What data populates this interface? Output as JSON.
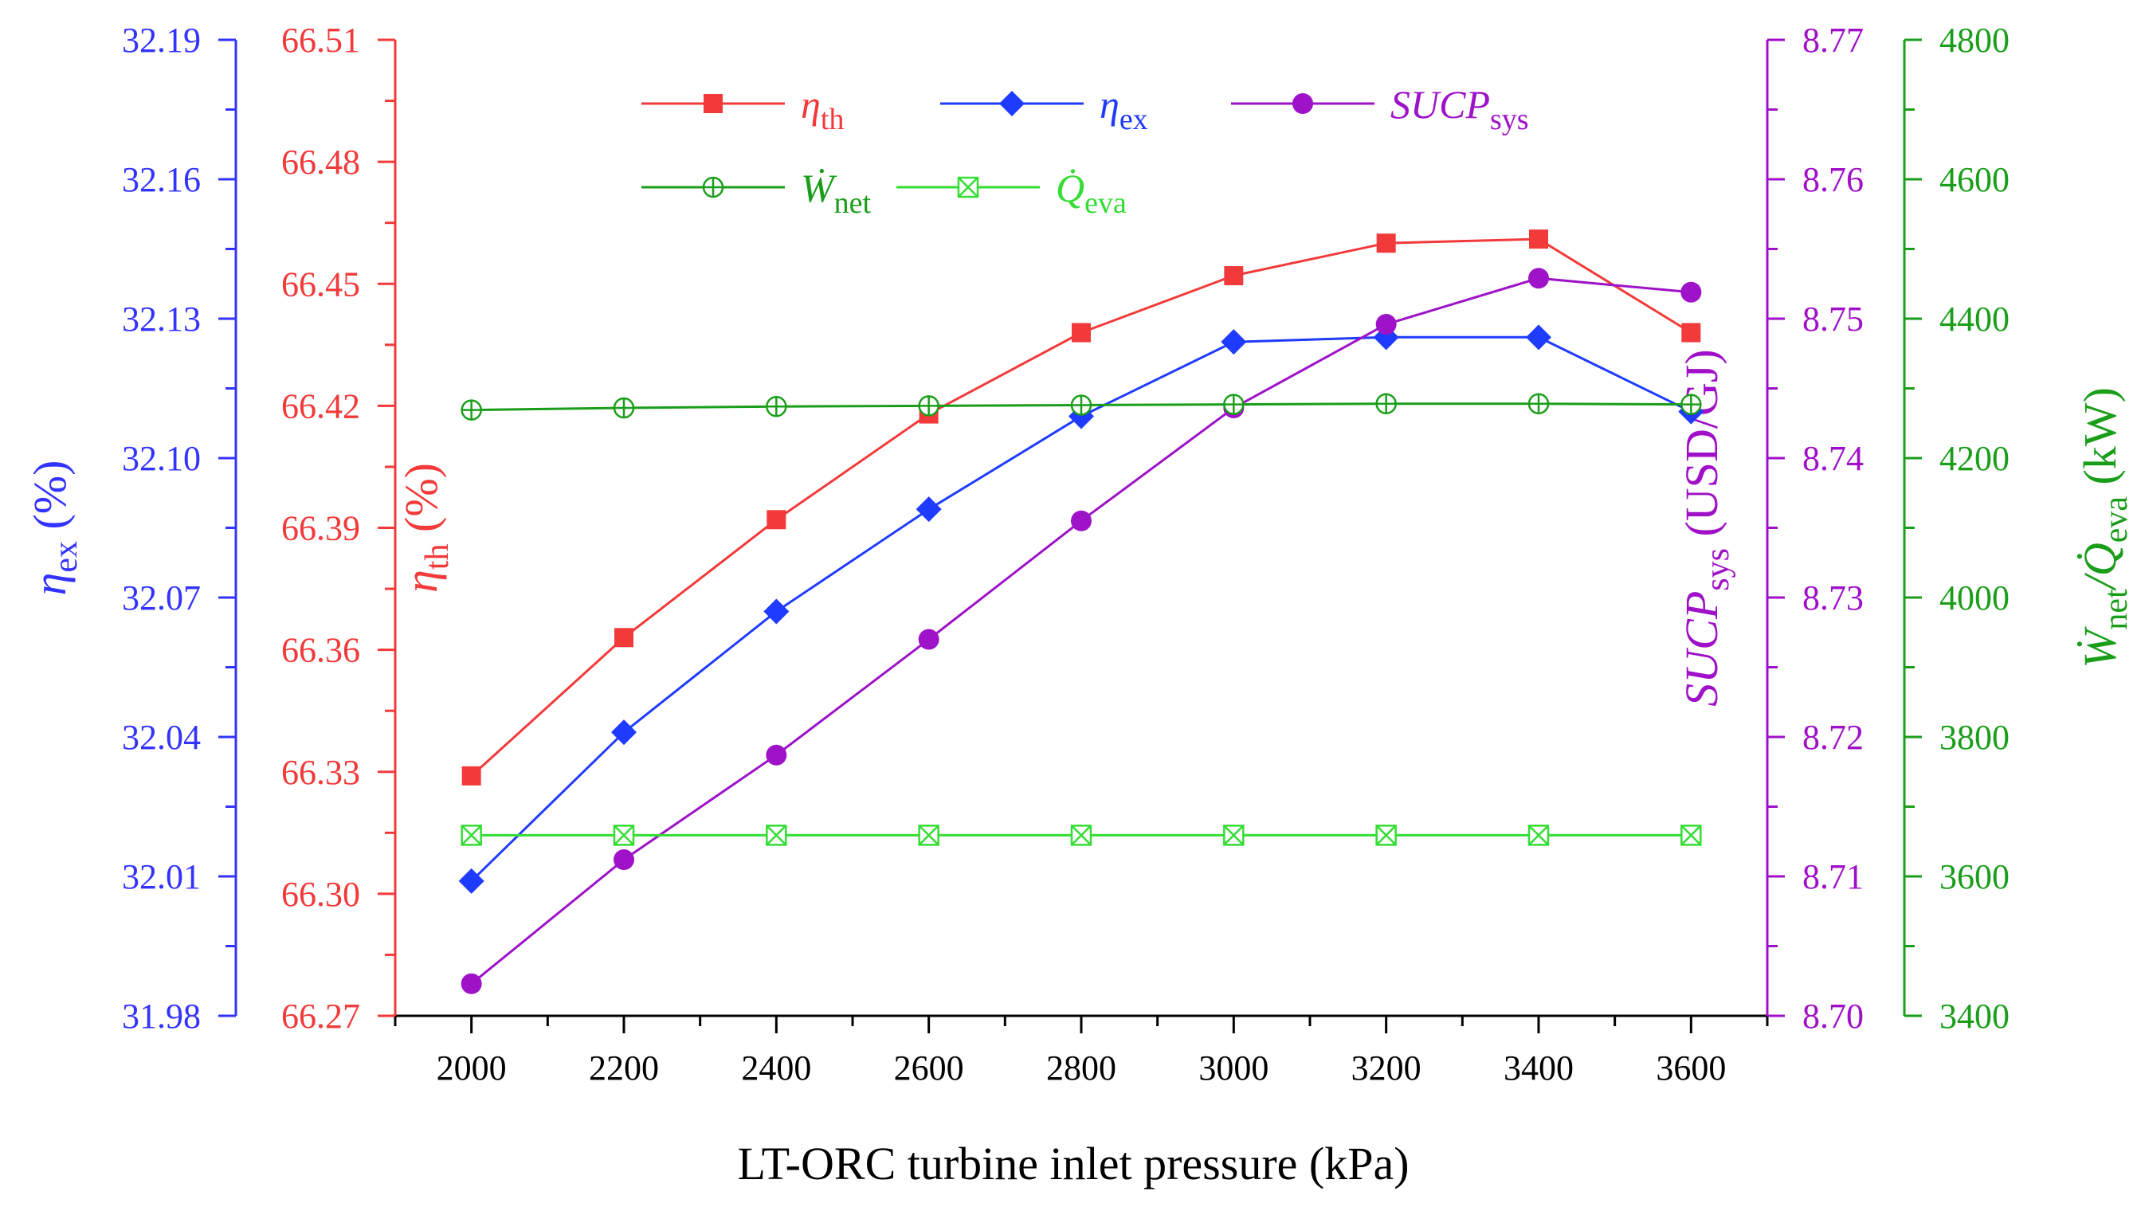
{
  "chart_data": {
    "type": "line",
    "x": [
      2000,
      2200,
      2400,
      2600,
      2800,
      3000,
      3200,
      3400,
      3600
    ],
    "xlabel": "LT-ORC turbine inlet pressure (kPa)",
    "xlim": [
      1900,
      3700
    ],
    "xticks": [
      "2000",
      "2200",
      "2400",
      "2600",
      "2800",
      "3000",
      "3200",
      "3400",
      "3600"
    ],
    "axes": [
      {
        "id": "eta_ex",
        "side": "left",
        "label_main": "η",
        "label_sub": "ex",
        "label_unit": " (%)",
        "ylim": [
          31.98,
          32.19
        ],
        "ticks": [
          "31.98",
          "32.01",
          "32.04",
          "32.07",
          "32.10",
          "32.13",
          "32.16",
          "32.19"
        ],
        "color": "#3333ff"
      },
      {
        "id": "eta_th",
        "side": "left",
        "label_main": "η",
        "label_sub": "th",
        "label_unit": " (%)",
        "ylim": [
          66.27,
          66.51
        ],
        "ticks": [
          "66.27",
          "66.30",
          "66.33",
          "66.36",
          "66.39",
          "66.42",
          "66.45",
          "66.48",
          "66.51"
        ],
        "color": "#f23a3a"
      },
      {
        "id": "sucp",
        "side": "right",
        "label_main": "SUCP",
        "label_sub": "sys",
        "label_unit": " (USD/GJ)",
        "ylim": [
          8.7,
          8.77
        ],
        "ticks": [
          "8.70",
          "8.71",
          "8.72",
          "8.73",
          "8.74",
          "8.75",
          "8.76",
          "8.77"
        ],
        "color": "#a010c8"
      },
      {
        "id": "power",
        "side": "right",
        "label_main": "Ẇ",
        "label_sub": "net",
        "label_mid": "/Q̇",
        "label_sub2": "eva",
        "label_unit": " (kW)",
        "ylim": [
          3400,
          4800
        ],
        "ticks": [
          "3400",
          "3600",
          "3800",
          "4000",
          "4200",
          "4400",
          "4600",
          "4800"
        ],
        "color": "#1a9e1a"
      }
    ],
    "series": [
      {
        "name_main": "η",
        "name_sub": "th",
        "axis": "eta_th",
        "marker": "square",
        "color": "#f23a3a",
        "values": [
          66.329,
          66.363,
          66.392,
          66.418,
          66.438,
          66.452,
          66.46,
          66.461,
          66.438
        ]
      },
      {
        "name_main": "η",
        "name_sub": "ex",
        "axis": "eta_ex",
        "marker": "diamond",
        "color": "#1f3bff",
        "values": [
          32.009,
          32.041,
          32.067,
          32.089,
          32.109,
          32.125,
          32.126,
          32.126,
          32.11
        ]
      },
      {
        "name_main": "SUCP",
        "name_sub": "sys",
        "axis": "sucp",
        "marker": "circle",
        "color": "#9e12c8",
        "values": [
          8.7023,
          8.7112,
          8.7187,
          8.727,
          8.7355,
          8.7436,
          8.7496,
          8.7529,
          8.7519
        ]
      },
      {
        "name_main": "Ẇ",
        "name_sub": "net",
        "axis": "power",
        "marker": "circle-plus",
        "color": "#1a9e1a",
        "values": [
          4269,
          4272,
          4274,
          4275,
          4276,
          4277,
          4278,
          4278,
          4277
        ]
      },
      {
        "name_main": "Q̇",
        "name_sub": "eva",
        "axis": "power",
        "marker": "square-x",
        "color": "#33dd33",
        "values": [
          3659,
          3659,
          3659,
          3659,
          3659,
          3659,
          3659,
          3659,
          3659
        ]
      }
    ],
    "legend": "top-center"
  }
}
